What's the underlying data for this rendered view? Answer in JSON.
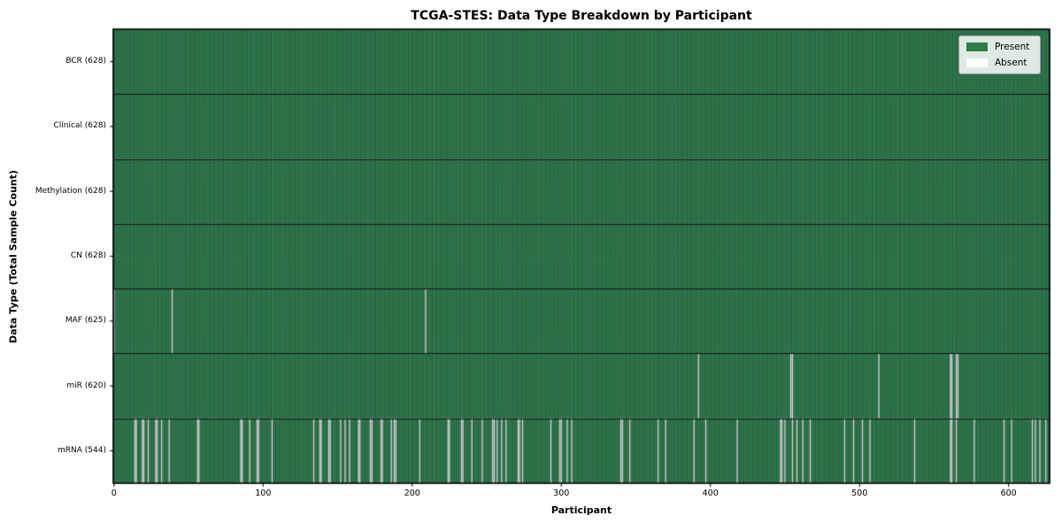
{
  "chart_data": {
    "type": "heatmap",
    "title": "TCGA-STES: Data Type Breakdown by Participant",
    "xlabel": "Participant",
    "ylabel": "Data Type (Total Sample Count)",
    "n_participants": 628,
    "x_ticks": [
      0,
      100,
      200,
      300,
      400,
      500,
      600
    ],
    "legend_position": "upper right",
    "legend": [
      {
        "label": "Present",
        "color": "#2e7d46"
      },
      {
        "label": "Absent",
        "color": "#ffffff"
      }
    ],
    "colors": {
      "present": "#2e7d46",
      "present_fill": "#3a8c5c",
      "absent": "#ffffff",
      "column_edge": "rgba(13,51,31,0.8)",
      "row_separator": "#141414",
      "spine": "#000000"
    },
    "rows": [
      {
        "label": "BCR (628)",
        "data_type": "BCR",
        "count": 628,
        "absent": []
      },
      {
        "label": "Clinical (628)",
        "data_type": "Clinical",
        "count": 628,
        "absent": []
      },
      {
        "label": "Methylation (628)",
        "data_type": "Methylation",
        "count": 628,
        "absent": []
      },
      {
        "label": "CN (628)",
        "data_type": "CN",
        "count": 628,
        "absent": []
      },
      {
        "label": "MAF (625)",
        "data_type": "MAF",
        "count": 625,
        "absent": [
          0,
          39,
          209
        ]
      },
      {
        "label": "miR (620)",
        "data_type": "miR",
        "count": 620,
        "absent": [
          392,
          454,
          455,
          513,
          561,
          562,
          565,
          566
        ]
      },
      {
        "label": "mRNA (544)",
        "data_type": "mRNA",
        "count": 544,
        "absent": [
          14,
          15,
          19,
          20,
          23,
          28,
          29,
          32,
          37,
          56,
          57,
          85,
          86,
          91,
          96,
          97,
          106,
          134,
          138,
          139,
          144,
          145,
          152,
          155,
          158,
          164,
          165,
          172,
          173,
          179,
          180,
          186,
          188,
          189,
          205,
          224,
          225,
          233,
          234,
          240,
          247,
          254,
          255,
          257,
          260,
          263,
          271,
          272,
          274,
          293,
          299,
          300,
          304,
          307,
          340,
          341,
          346,
          365,
          370,
          389,
          397,
          418,
          447,
          448,
          450,
          455,
          458,
          462,
          467,
          490,
          496,
          502,
          507,
          537,
          561,
          562,
          565,
          577,
          597,
          602,
          616,
          618,
          621,
          625
        ]
      }
    ]
  }
}
